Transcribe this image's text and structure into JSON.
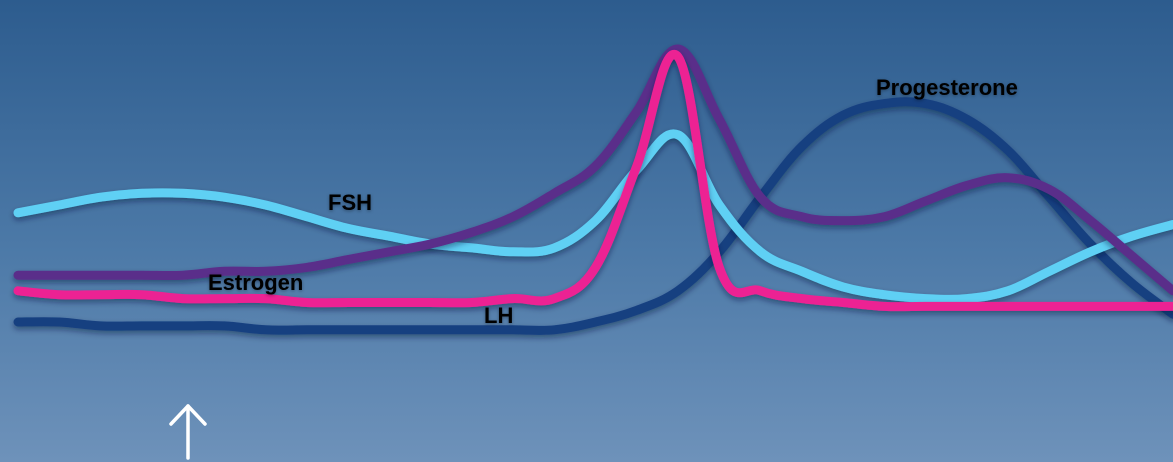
{
  "chart_data": {
    "type": "line",
    "title": "",
    "xlabel": "",
    "ylabel": "",
    "grid": false,
    "x": [
      0,
      1,
      2,
      3,
      4,
      5,
      6,
      7,
      8,
      9,
      10,
      11,
      12,
      13,
      14,
      15,
      16,
      17,
      18,
      19,
      20,
      21,
      22,
      23,
      24,
      25,
      26,
      27,
      28
    ],
    "ylim": [
      0,
      100
    ],
    "series": [
      {
        "name": "FSH",
        "color": "#5ed0f4",
        "values": [
          48,
          50,
          52,
          53,
          53,
          52,
          50,
          47,
          44,
          42,
          40,
          39,
          38,
          39,
          46,
          59,
          68,
          50,
          38,
          33,
          29,
          27,
          26,
          26,
          28,
          33,
          38,
          42,
          45
        ]
      },
      {
        "name": "Estrogen",
        "color": "#5a2d8a",
        "values": [
          32,
          32,
          32,
          32,
          32,
          33,
          33,
          34,
          36,
          38,
          40,
          43,
          47,
          53,
          60,
          74,
          90,
          72,
          52,
          47,
          46,
          47,
          51,
          55,
          57,
          54,
          46,
          37,
          28
        ]
      },
      {
        "name": "LH",
        "color": "#ec2193",
        "values": [
          28,
          27,
          27,
          27,
          26,
          26,
          26,
          25,
          25,
          25,
          25,
          25,
          26,
          26,
          34,
          60,
          88,
          34,
          28,
          26,
          25,
          24,
          24,
          24,
          24,
          24,
          24,
          24,
          24
        ]
      },
      {
        "name": "Progesterone",
        "color": "#163f80",
        "values": [
          20,
          20,
          19,
          19,
          19,
          19,
          18,
          18,
          18,
          18,
          18,
          18,
          18,
          18,
          20,
          23,
          28,
          38,
          52,
          65,
          73,
          76,
          76,
          72,
          64,
          52,
          40,
          30,
          22
        ]
      }
    ],
    "annotations": [
      {
        "type": "arrow",
        "direction": "up",
        "x": 7.5,
        "color": "#ffffff"
      }
    ]
  }
}
